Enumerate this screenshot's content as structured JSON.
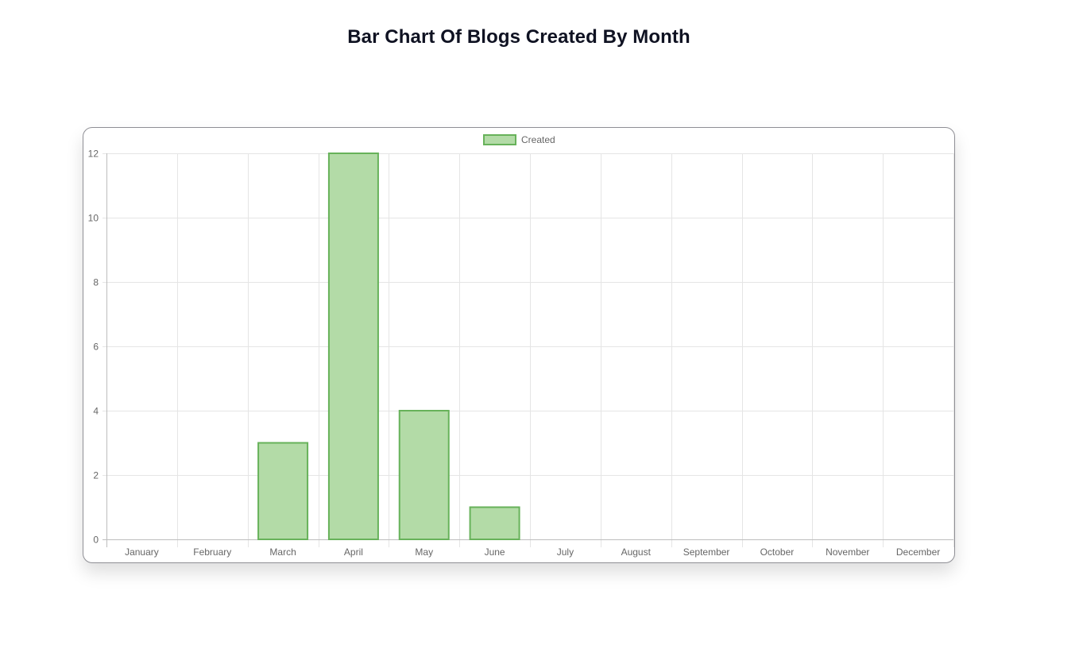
{
  "page": {
    "title": "Bar Chart Of Blogs Created By Month"
  },
  "colors": {
    "bar_fill": "#b3dba7",
    "bar_border": "#67b25a",
    "grid": "#e5e5e5",
    "axis": "#bdbdbd",
    "tick_text": "#666666"
  },
  "chart_data": {
    "type": "bar",
    "categories": [
      "January",
      "February",
      "March",
      "April",
      "May",
      "June",
      "July",
      "August",
      "September",
      "October",
      "November",
      "December"
    ],
    "series": [
      {
        "name": "Created",
        "values": [
          0,
          0,
          3,
          12,
          4,
          1,
          0,
          0,
          0,
          0,
          0,
          0
        ]
      }
    ],
    "ylim": [
      0,
      12
    ],
    "yticks": [
      0,
      2,
      4,
      6,
      8,
      10,
      12
    ],
    "grid": true,
    "legend": "top-center"
  }
}
